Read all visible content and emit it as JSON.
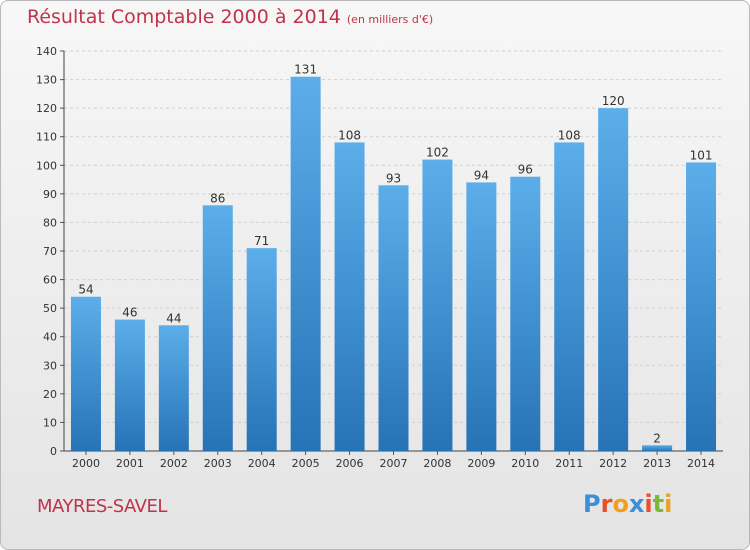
{
  "title": "Résultat Comptable 2000 à 2014",
  "subtitle": "(en milliers d'€)",
  "commune": "MAYRES-SAVEL",
  "logo": {
    "text": "Proxiti",
    "letters": [
      "P",
      "r",
      "o",
      "x",
      "i",
      "t",
      "i"
    ],
    "colors": [
      "#3a8fd8",
      "#e8502a",
      "#f0a020",
      "#3a8fd8",
      "#e8502a",
      "#7ab83a",
      "#f0a020"
    ]
  },
  "colors": {
    "bar_top": "#5caeea",
    "bar_bottom": "#2673b6",
    "accent": "#c0334a"
  },
  "chart_data": {
    "type": "bar",
    "categories": [
      "2000",
      "2001",
      "2002",
      "2003",
      "2004",
      "2005",
      "2006",
      "2007",
      "2008",
      "2009",
      "2010",
      "2011",
      "2012",
      "2013",
      "2014"
    ],
    "values": [
      54,
      46,
      44,
      86,
      71,
      131,
      108,
      93,
      102,
      94,
      96,
      108,
      120,
      2,
      101
    ],
    "ylim": [
      0,
      140
    ],
    "yticks": [
      0,
      10,
      20,
      30,
      40,
      50,
      60,
      70,
      80,
      90,
      100,
      110,
      120,
      130,
      140
    ],
    "grid": true,
    "data_labels": true
  }
}
